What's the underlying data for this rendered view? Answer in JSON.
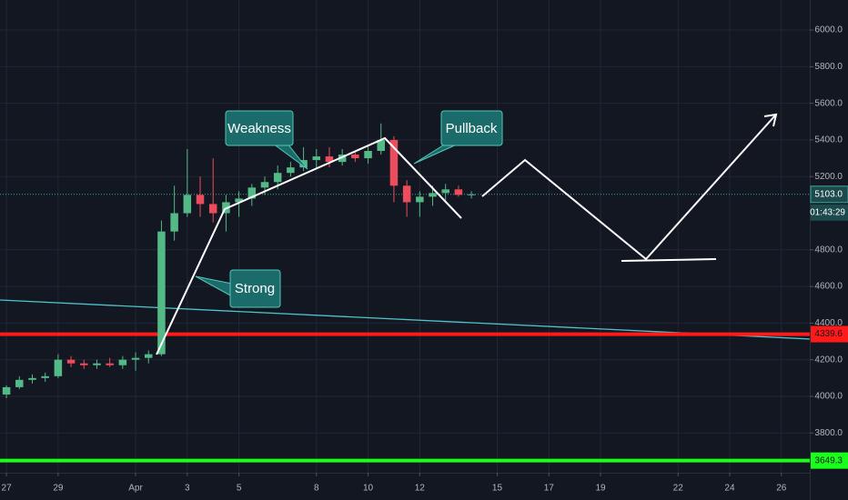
{
  "chart_data": {
    "type": "candlestick",
    "x": [
      0,
      0.5,
      1,
      1.5,
      2,
      2.5,
      3,
      3.5,
      4,
      4.5,
      5,
      5.5,
      6,
      6.5,
      7,
      7.5,
      8,
      8.5,
      9,
      9.5,
      10,
      10.5,
      11,
      11.5,
      12,
      12.5,
      13,
      13.5,
      14,
      14.5,
      15,
      15.5,
      16,
      16.5,
      17,
      17.5,
      18
    ],
    "open": [
      4010,
      4050,
      4090,
      4100,
      4110,
      4200,
      4180,
      4170,
      4180,
      4170,
      4200,
      4210,
      4230,
      4900,
      5000,
      5100,
      5050,
      5000,
      5060,
      5080,
      5140,
      5170,
      5220,
      5250,
      5290,
      5310,
      5280,
      5320,
      5300,
      5340,
      5400,
      5150,
      5060,
      5090,
      5110,
      5130,
      5100
    ],
    "high": [
      4060,
      4110,
      4120,
      4130,
      4230,
      4220,
      4200,
      4200,
      4210,
      4220,
      4240,
      4250,
      4960,
      5150,
      5350,
      5200,
      5300,
      5100,
      5120,
      5160,
      5200,
      5260,
      5280,
      5360,
      5350,
      5360,
      5350,
      5340,
      5370,
      5490,
      5420,
      5180,
      5120,
      5150,
      5160,
      5150,
      5120
    ],
    "low": [
      3990,
      4040,
      4070,
      4080,
      4100,
      4160,
      4150,
      4150,
      4160,
      4150,
      4140,
      4180,
      4220,
      4850,
      4980,
      4980,
      4950,
      4900,
      4980,
      5040,
      5100,
      5130,
      5200,
      5230,
      5240,
      5250,
      5260,
      5280,
      5270,
      5320,
      5060,
      4980,
      4980,
      5040,
      5070,
      5090,
      5080
    ],
    "close": [
      4050,
      4090,
      4100,
      4110,
      4200,
      4180,
      4170,
      4180,
      4170,
      4200,
      4210,
      4230,
      4900,
      5000,
      5100,
      5050,
      5000,
      5060,
      5080,
      5140,
      5170,
      5220,
      5250,
      5290,
      5310,
      5280,
      5320,
      5300,
      5340,
      5400,
      5150,
      5060,
      5090,
      5110,
      5130,
      5100,
      5103
    ],
    "up_color": "#53b987",
    "down_color": "#eb4d5c",
    "xlim": [
      -0.25,
      31.1
    ],
    "xticks": [
      {
        "value": 0,
        "label": "27"
      },
      {
        "value": 2,
        "label": "29"
      },
      {
        "value": 5,
        "label": "Apr"
      },
      {
        "value": 7,
        "label": "3"
      },
      {
        "value": 9,
        "label": "5"
      },
      {
        "value": 12,
        "label": "8"
      },
      {
        "value": 14,
        "label": "10"
      },
      {
        "value": 16,
        "label": "12"
      },
      {
        "value": 19,
        "label": "15"
      },
      {
        "value": 21,
        "label": "17"
      },
      {
        "value": 23,
        "label": "19"
      },
      {
        "value": 26,
        "label": "22"
      },
      {
        "value": 28,
        "label": "24"
      },
      {
        "value": 30,
        "label": "26"
      }
    ],
    "ylim": [
      3583,
      6164
    ],
    "yticks": [
      {
        "value": 6000,
        "label": "6000.0"
      },
      {
        "value": 5800,
        "label": "5800.0"
      },
      {
        "value": 5600,
        "label": "5600.0"
      },
      {
        "value": 5400,
        "label": "5400.0"
      },
      {
        "value": 5200,
        "label": "5200.0"
      },
      {
        "value": 4800,
        "label": "4800.0"
      },
      {
        "value": 4600,
        "label": "4600.0"
      },
      {
        "value": 4400,
        "label": "4400.0"
      },
      {
        "value": 4200,
        "label": "4200.0"
      },
      {
        "value": 4000,
        "label": "4000.0"
      },
      {
        "value": 3800,
        "label": "3800.0"
      }
    ],
    "grid": true,
    "hlines": [
      {
        "value": 4339.6,
        "label": "4339.6",
        "color": "#ff1a1a"
      },
      {
        "value": 3649.3,
        "label": "3649.3",
        "color": "#1aff1a"
      }
    ],
    "last_price": {
      "value": 5103,
      "label": "5103.0",
      "color": "#3fa59b",
      "countdown": "01:43:29"
    },
    "trendline": {
      "x": [
        -0.25,
        31.1
      ],
      "y": [
        4526,
        4313
      ],
      "color": "#4fc3c7"
    },
    "annotations": [
      "Weakness",
      "Pullback",
      "Strong"
    ]
  }
}
